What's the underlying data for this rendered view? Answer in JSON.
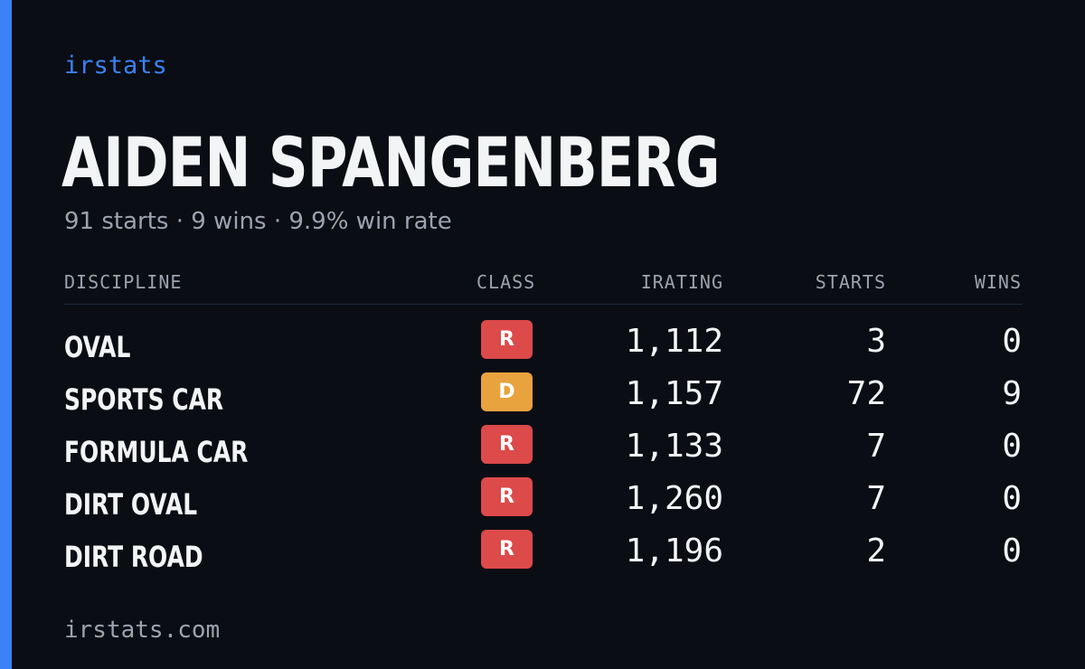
{
  "brand": "irstats",
  "player": {
    "name": "AIDEN SPANGENBERG",
    "summary": "91 starts · 9 wins · 9.9% win rate"
  },
  "table": {
    "headers": {
      "discipline": "DISCIPLINE",
      "class": "CLASS",
      "irating": "IRATING",
      "starts": "STARTS",
      "wins": "WINS"
    },
    "rows": [
      {
        "discipline": "OVAL",
        "class": "R",
        "irating": "1,112",
        "starts": "3",
        "wins": "0"
      },
      {
        "discipline": "SPORTS CAR",
        "class": "D",
        "irating": "1,157",
        "starts": "72",
        "wins": "9"
      },
      {
        "discipline": "FORMULA CAR",
        "class": "R",
        "irating": "1,133",
        "starts": "7",
        "wins": "0"
      },
      {
        "discipline": "DIRT OVAL",
        "class": "R",
        "irating": "1,260",
        "starts": "7",
        "wins": "0"
      },
      {
        "discipline": "DIRT ROAD",
        "class": "R",
        "irating": "1,196",
        "starts": "2",
        "wins": "0"
      }
    ]
  },
  "footer": "irstats.com",
  "colors": {
    "accent": "#3b82f6",
    "background": "#0a0d14",
    "class_r": "#dc4a4a",
    "class_d": "#e8a33e"
  }
}
